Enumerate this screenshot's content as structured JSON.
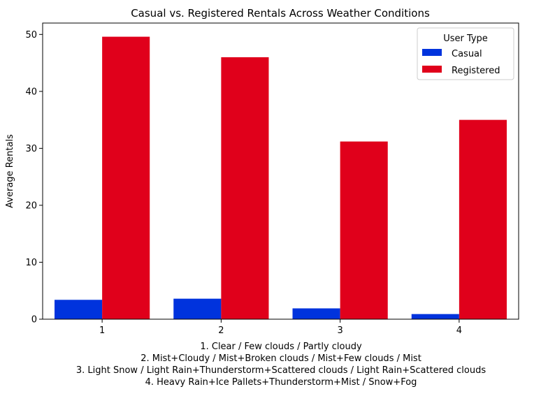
{
  "chart_data": {
    "type": "bar",
    "title": "Casual vs. Registered Rentals Across Weather Conditions",
    "xlabel_lines": [
      "1. Clear / Few clouds / Partly cloudy",
      "2. Mist+Cloudy / Mist+Broken clouds / Mist+Few clouds / Mist",
      "3. Light Snow / Light Rain+Thunderstorm+Scattered clouds / Light Rain+Scattered clouds",
      "4. Heavy Rain+Ice Pallets+Thunderstorm+Mist / Snow+Fog"
    ],
    "ylabel": "Average Rentals",
    "categories": [
      "1",
      "2",
      "3",
      "4"
    ],
    "series": [
      {
        "name": "Casual",
        "color": "#0033dd",
        "values": [
          3.4,
          3.6,
          1.9,
          0.9
        ]
      },
      {
        "name": "Registered",
        "color": "#e0001b",
        "values": [
          49.6,
          46.0,
          31.2,
          35.0
        ]
      }
    ],
    "ylim": [
      0,
      52
    ],
    "yticks": [
      0,
      10,
      20,
      30,
      40,
      50
    ],
    "legend": {
      "title": "User Type",
      "placement": "top-right"
    },
    "grid": false
  }
}
